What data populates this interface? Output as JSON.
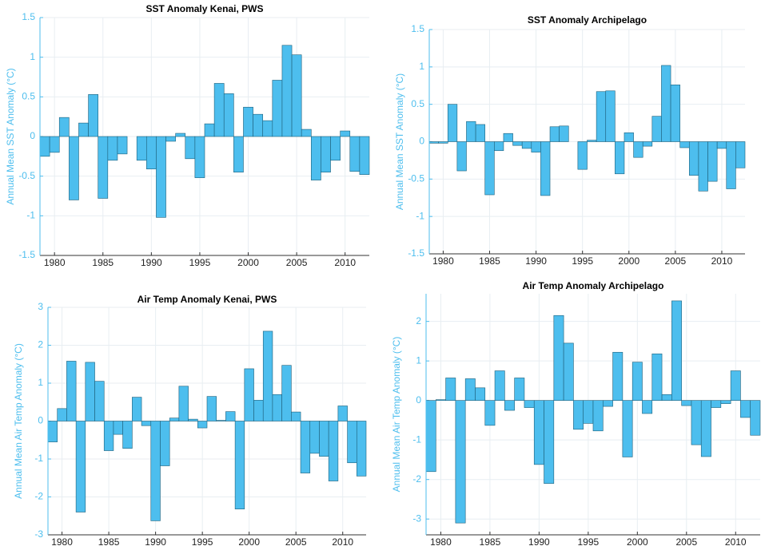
{
  "chart_data": [
    {
      "type": "bar",
      "title": "SST Anomaly Kenai, PWS",
      "ylabel": "Annual Mean SST Anomaly (°C)",
      "color": "#4dbeee",
      "grid": true,
      "x": [
        1979,
        1980,
        1981,
        1982,
        1983,
        1984,
        1985,
        1986,
        1987,
        1988,
        1989,
        1990,
        1991,
        1992,
        1993,
        1994,
        1995,
        1996,
        1997,
        1998,
        1999,
        2000,
        2001,
        2002,
        2003,
        2004,
        2005,
        2006,
        2007,
        2008,
        2009,
        2010,
        2011,
        2012
      ],
      "values": [
        -0.25,
        -0.2,
        0.24,
        -0.8,
        0.17,
        0.53,
        -0.78,
        -0.3,
        -0.22,
        0,
        -0.3,
        -0.41,
        -1.02,
        -0.06,
        0.04,
        -0.28,
        -0.52,
        0.16,
        0.67,
        0.54,
        -0.45,
        0.37,
        0.28,
        0.2,
        0.71,
        1.15,
        1.03,
        0.09,
        -0.55,
        -0.45,
        -0.3,
        0.07,
        -0.44,
        -0.48
      ],
      "xlim": [
        1978.5,
        2012.5
      ],
      "ylim": [
        -1.5,
        1.5
      ],
      "xticks": [
        1980,
        1985,
        1990,
        1995,
        2000,
        2005,
        2010
      ],
      "yticks": [
        -1.5,
        -1,
        -0.5,
        0,
        0.5,
        1,
        1.5
      ]
    },
    {
      "type": "bar",
      "title": "SST Anomaly Archipelago",
      "ylabel": "Annual Mean SST Anomaly (°C)",
      "color": "#4dbeee",
      "grid": true,
      "x": [
        1979,
        1980,
        1981,
        1982,
        1983,
        1984,
        1985,
        1986,
        1987,
        1988,
        1989,
        1990,
        1991,
        1992,
        1993,
        1994,
        1995,
        1996,
        1997,
        1998,
        1999,
        2000,
        2001,
        2002,
        2003,
        2004,
        2005,
        2006,
        2007,
        2008,
        2009,
        2010,
        2011,
        2012
      ],
      "values": [
        -0.02,
        -0.02,
        0.5,
        -0.39,
        0.27,
        0.23,
        -0.71,
        -0.12,
        0.11,
        -0.05,
        -0.09,
        -0.14,
        -0.72,
        0.2,
        0.21,
        0,
        -0.37,
        0.02,
        0.67,
        0.68,
        -0.43,
        0.12,
        -0.21,
        -0.06,
        0.34,
        1.02,
        0.76,
        -0.08,
        -0.45,
        -0.66,
        -0.53,
        -0.09,
        -0.63,
        -0.35
      ],
      "xlim": [
        1978.5,
        2012.5
      ],
      "ylim": [
        -1.5,
        1.5
      ],
      "xticks": [
        1980,
        1985,
        1990,
        1995,
        2000,
        2005,
        2010
      ],
      "yticks": [
        -1.5,
        -1,
        -0.5,
        0,
        0.5,
        1,
        1.5
      ]
    },
    {
      "type": "bar",
      "title": "Air Temp Anomaly Kenai, PWS",
      "ylabel": "Annual Mean Air Temp Anomaly (°C)",
      "color": "#4dbeee",
      "grid": true,
      "x": [
        1979,
        1980,
        1981,
        1982,
        1983,
        1984,
        1985,
        1986,
        1987,
        1988,
        1989,
        1990,
        1991,
        1992,
        1993,
        1994,
        1995,
        1996,
        1997,
        1998,
        1999,
        2000,
        2001,
        2002,
        2003,
        2004,
        2005,
        2006,
        2007,
        2008,
        2009,
        2010,
        2011,
        2012
      ],
      "values": [
        -0.55,
        0.33,
        1.58,
        -2.4,
        1.55,
        1.05,
        -0.78,
        -0.35,
        -0.72,
        0.63,
        -0.12,
        -2.63,
        -1.18,
        0.08,
        0.92,
        0.05,
        -0.18,
        0.65,
        0.02,
        0.25,
        -2.32,
        1.38,
        0.55,
        2.37,
        0.7,
        1.47,
        0.24,
        -1.37,
        -0.85,
        -0.93,
        -1.58,
        0.4,
        -1.1,
        -1.45
      ],
      "xlim": [
        1978.5,
        2012.5
      ],
      "ylim": [
        -3,
        3
      ],
      "xticks": [
        1980,
        1985,
        1990,
        1995,
        2000,
        2005,
        2010
      ],
      "yticks": [
        -3,
        -2,
        -1,
        0,
        1,
        2,
        3
      ]
    },
    {
      "type": "bar",
      "title": "Air Temp Anomaly Archipelago",
      "ylabel": "Annual Mean Air Temp Anomaly (°C)",
      "color": "#4dbeee",
      "grid": true,
      "x": [
        1979,
        1980,
        1981,
        1982,
        1983,
        1984,
        1985,
        1986,
        1987,
        1988,
        1989,
        1990,
        1991,
        1992,
        1993,
        1994,
        1995,
        1996,
        1997,
        1998,
        1999,
        2000,
        2001,
        2002,
        2003,
        2004,
        2005,
        2006,
        2007,
        2008,
        2009,
        2010,
        2011,
        2012
      ],
      "values": [
        -1.8,
        0.02,
        0.57,
        -3.1,
        0.55,
        0.32,
        -0.63,
        0.75,
        -0.25,
        0.57,
        -0.18,
        -1.62,
        -2.1,
        2.15,
        1.45,
        -0.73,
        -0.58,
        -0.77,
        -0.15,
        1.22,
        -1.43,
        0.97,
        -0.33,
        1.18,
        0.15,
        2.52,
        -0.13,
        -1.12,
        -1.42,
        -0.18,
        -0.08,
        0.75,
        -0.43,
        -0.88
      ],
      "xlim": [
        1978.5,
        2012.5
      ],
      "ylim": [
        -3.4,
        2.7
      ],
      "xticks": [
        1980,
        1985,
        1990,
        1995,
        2000,
        2005,
        2010
      ],
      "yticks": [
        -3,
        -2,
        -1,
        0,
        1,
        2
      ]
    }
  ]
}
